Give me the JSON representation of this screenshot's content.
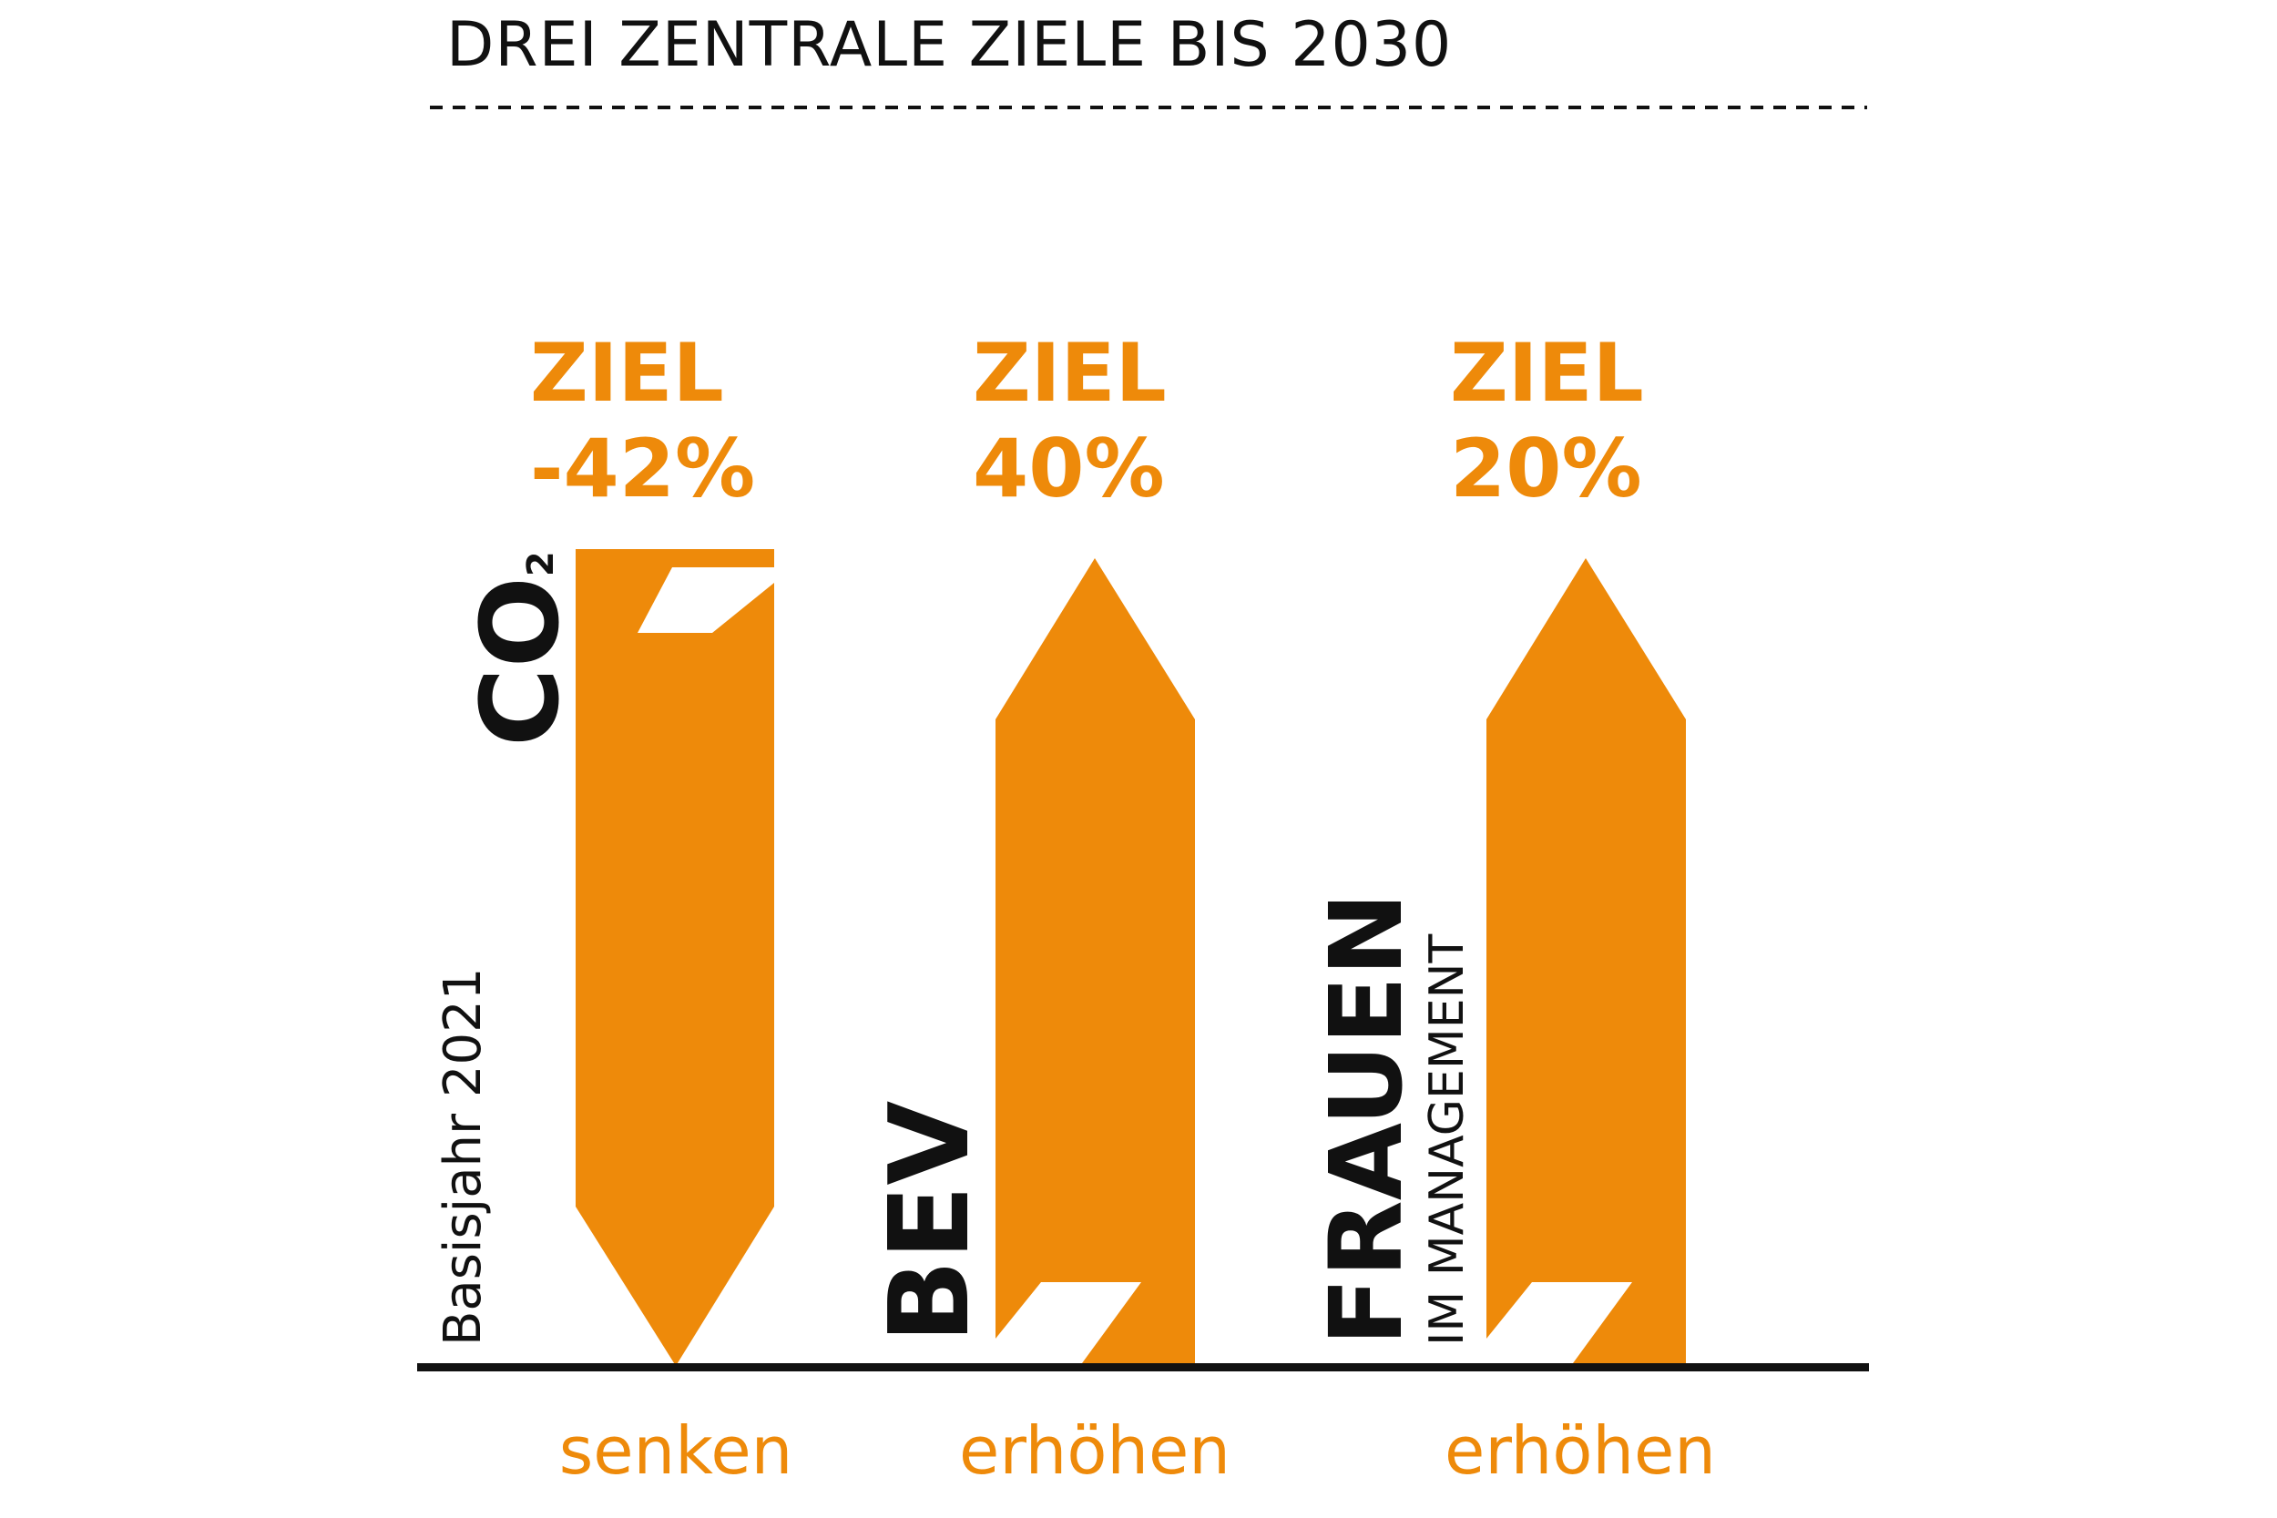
{
  "title": "DREI ZENTRALE ZIELE BIS 2030",
  "base_year_label": "Basisjahr 2021",
  "colors": {
    "accent": "#EE8A0A",
    "text": "#111111",
    "background": "#FFFFFF"
  },
  "goals": [
    {
      "name": "CO",
      "name_subscript": "2",
      "subtitle": "",
      "target_label": "ZIEL",
      "target_value": "-42%",
      "direction": "down",
      "action": "senken"
    },
    {
      "name": "BEV",
      "subtitle": "",
      "target_label": "ZIEL",
      "target_value": "40%",
      "direction": "up",
      "action": "erhöhen"
    },
    {
      "name": "FRAUEN",
      "subtitle": "IM MANAGEMENT",
      "target_label": "ZIEL",
      "target_value": "20%",
      "direction": "up",
      "action": "erhöhen"
    }
  ]
}
